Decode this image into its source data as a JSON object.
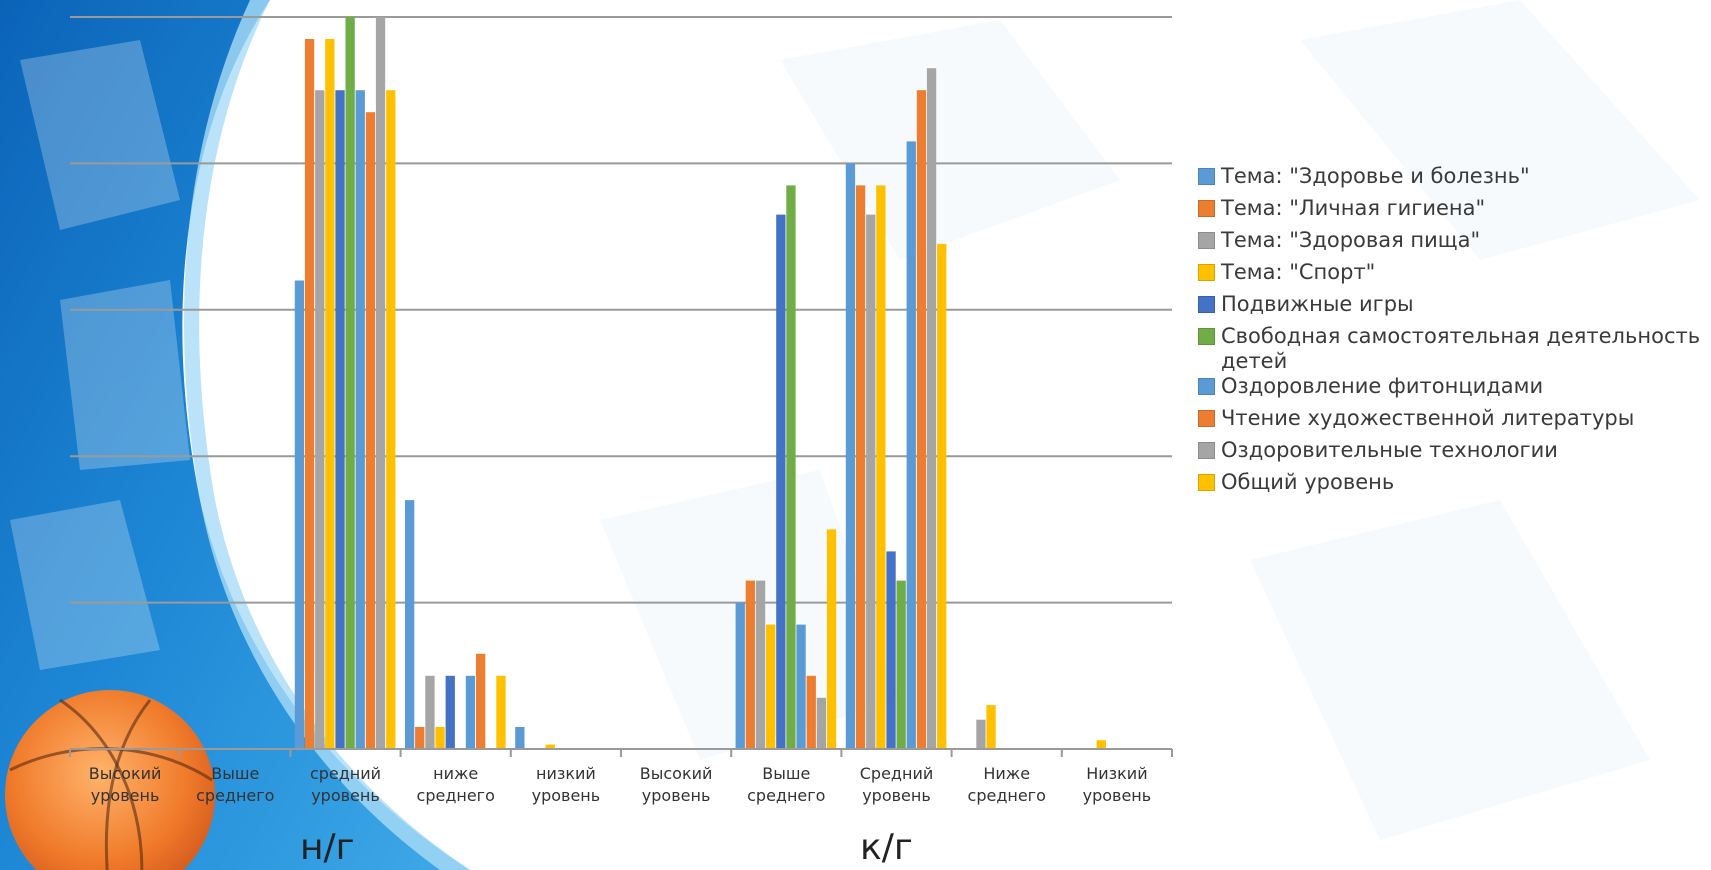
{
  "chart_data": {
    "type": "bar",
    "categories": [
      "Высокий уровень",
      "Выше среднего",
      "средний уровень",
      "ниже среднего",
      "низкий уровень",
      "Высокий уровень",
      "Выше среднего",
      "Средний уровень",
      "Ниже среднего",
      "Низкий уровень"
    ],
    "groups": [
      {
        "label": "н/г",
        "categories": [
          0,
          1,
          2,
          3,
          4
        ]
      },
      {
        "label": "к/г",
        "categories": [
          5,
          6,
          7,
          8,
          9
        ]
      }
    ],
    "ylim": [
      0,
      50
    ],
    "grid": true,
    "legend_position": "right",
    "series": [
      {
        "name": "Тема: \"Здоровье и болезнь\"",
        "color": "#5B9BD5",
        "values": [
          0,
          0,
          32,
          17,
          1.5,
          0,
          10,
          40,
          0,
          0
        ]
      },
      {
        "name": "Тема: \"Личная гигиена\"",
        "color": "#ED7D31",
        "values": [
          0,
          0,
          48.5,
          1.5,
          0,
          0,
          11.5,
          38.5,
          0,
          0
        ]
      },
      {
        "name": "Тема: \"Здоровая пища\"",
        "color": "#A5A5A5",
        "values": [
          0,
          0,
          45,
          5,
          0,
          0,
          11.5,
          36.5,
          2,
          0
        ]
      },
      {
        "name": "Тема: \"Спорт\"",
        "color": "#FFC000",
        "values": [
          0,
          0,
          48.5,
          1.5,
          0.3,
          0,
          8.5,
          38.5,
          3,
          0.6
        ]
      },
      {
        "name": "Подвижные игры",
        "color": "#4472C4",
        "values": [
          0,
          0,
          45,
          5,
          0,
          0,
          36.5,
          13.5,
          0,
          0
        ]
      },
      {
        "name": "Свободная самостоятельная деятельность детей",
        "color": "#70AD47",
        "values": [
          0,
          0,
          50,
          0,
          0,
          0,
          38.5,
          11.5,
          0,
          0
        ]
      },
      {
        "name": "Оздоровление фитонцидами",
        "color": "#5B9BD5",
        "values": [
          0,
          0,
          45,
          5,
          0,
          0,
          8.5,
          41.5,
          0,
          0
        ]
      },
      {
        "name": "Чтение художественной литературы",
        "color": "#ED7D31",
        "values": [
          0,
          0,
          43.5,
          6.5,
          0,
          0,
          5,
          45,
          0,
          0
        ]
      },
      {
        "name": "Оздоровительные технологии",
        "color": "#A5A5A5",
        "values": [
          0,
          0,
          50,
          0,
          0,
          0,
          3.5,
          46.5,
          0,
          0
        ]
      },
      {
        "name": "Общий уровень",
        "color": "#FFC000",
        "values": [
          0,
          0,
          45,
          5,
          0,
          0,
          15,
          34.5,
          0,
          0
        ]
      }
    ]
  }
}
